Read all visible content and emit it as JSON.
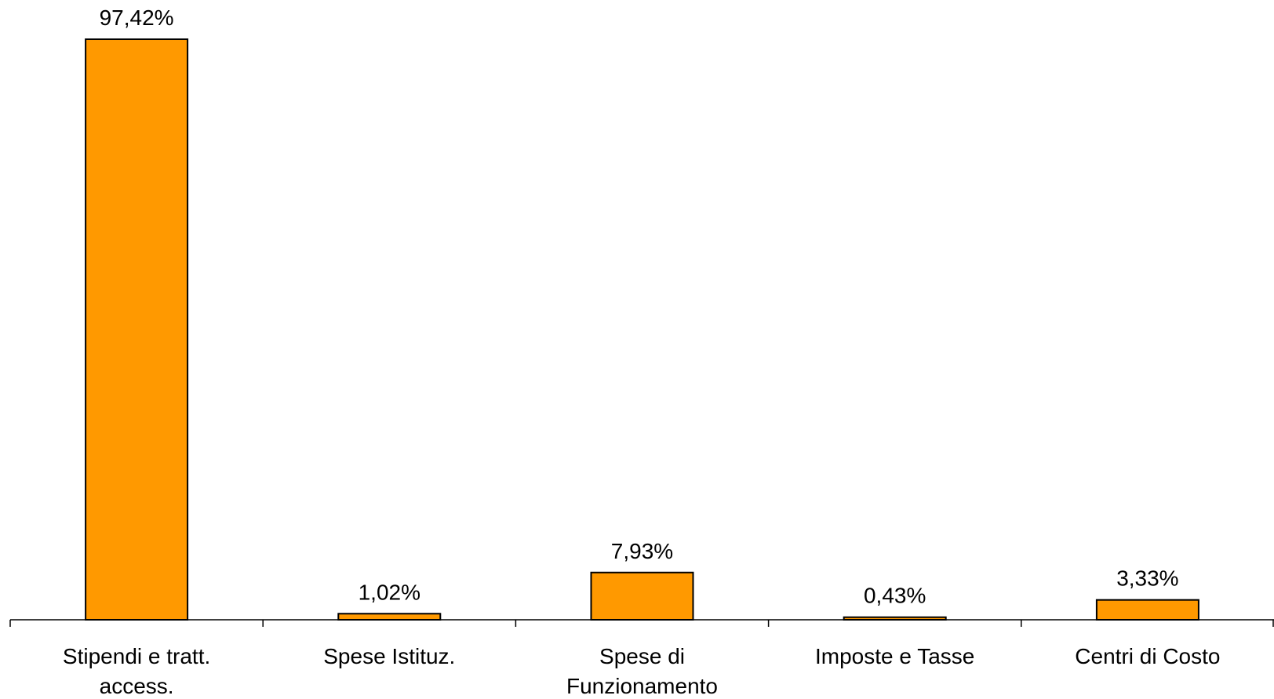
{
  "chart_data": {
    "type": "bar",
    "categories": [
      [
        "Stipendi e tratt.",
        "access."
      ],
      [
        "Spese Istituz."
      ],
      [
        "Spese di",
        "Funzionamento"
      ],
      [
        "Imposte e Tasse"
      ],
      [
        "Centri di Costo"
      ]
    ],
    "values": [
      97.42,
      1.02,
      7.93,
      0.43,
      3.33
    ],
    "data_labels": [
      "97,42%",
      "1,02%",
      "7,93%",
      "0,43%",
      "3,33%"
    ],
    "title": "",
    "xlabel": "",
    "ylabel": "",
    "ylim": [
      0,
      100
    ],
    "grid": false,
    "legend": "none",
    "bar_color": "#FF9900",
    "bar_border_color": "#000000"
  }
}
